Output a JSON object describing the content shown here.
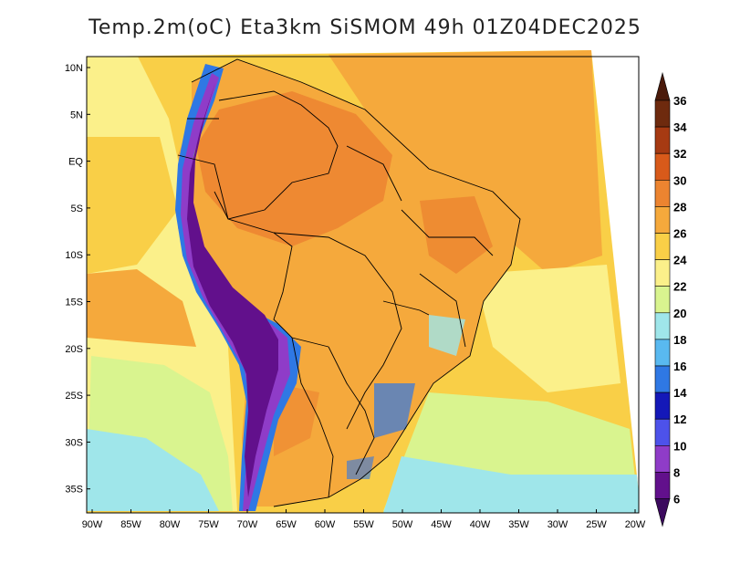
{
  "title": "Temp.2m(oC) Eta3km SiSMOM 49h 01Z04DEC2025",
  "lat_labels": [
    "10N",
    "5N",
    "EQ",
    "5S",
    "10S",
    "15S",
    "20S",
    "25S",
    "30S",
    "35S"
  ],
  "lon_labels": [
    "90W",
    "85W",
    "80W",
    "75W",
    "70W",
    "65W",
    "60W",
    "55W",
    "50W",
    "45W",
    "40W",
    "35W",
    "30W",
    "25W",
    "20W"
  ],
  "colorbar": {
    "labels": [
      "36",
      "34",
      "32",
      "30",
      "28",
      "26",
      "24",
      "22",
      "20",
      "18",
      "16",
      "14",
      "12",
      "10",
      "8",
      "6"
    ],
    "bands": [
      "#6e2a0e",
      "#a63a12",
      "#d85a1a",
      "#ec8430",
      "#f5a93c",
      "#f9cf47",
      "#fbf08a",
      "#d9f48f",
      "#9fe6ea",
      "#59b9f0",
      "#2f78e4",
      "#1418b8",
      "#4d52ea",
      "#8f3cc8",
      "#62108c"
    ],
    "top_cap": "#4a1a0a",
    "bottom_cap": "#3c0a5e"
  },
  "palette": {
    "ocean_warm": "#f9cf47",
    "ocean_mid": "#f5a93c",
    "ocean_cool": "#fbf08a",
    "ocean_cold": "#d9f48f",
    "ocean_colder": "#9fe6ea",
    "land_hot": "#ec8430",
    "andes_cold": "#62108c",
    "andes_mid": "#8f3cc8",
    "andes_edge": "#2f78e4",
    "borders": "#000000"
  }
}
